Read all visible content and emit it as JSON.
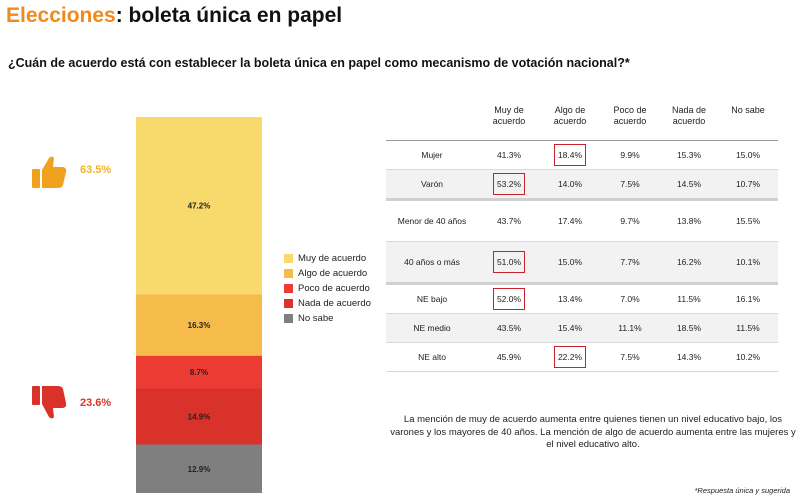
{
  "header": {
    "title_highlight": "Elecciones",
    "title_rest": ": boleta única en papel",
    "question": "¿Cuán de acuerdo está con establecer la boleta única en papel como mecanismo de votación nacional?*"
  },
  "chart_data": {
    "type": "bar",
    "subtype": "stacked-100",
    "segments": [
      {
        "name": "Muy de acuerdo",
        "value": 47.2,
        "label": "47.2%",
        "color": "#F8D96C"
      },
      {
        "name": "Algo de acuerdo",
        "value": 16.3,
        "label": "16.3%",
        "color": "#F5BC4B"
      },
      {
        "name": "Poco de acuerdo",
        "value": 8.7,
        "label": "8.7%",
        "color": "#EC3B33"
      },
      {
        "name": "Nada de acuerdo",
        "value": 14.9,
        "label": "14.9%",
        "color": "#D8322A"
      },
      {
        "name": "No sabe",
        "value": 12.9,
        "label": "12.9%",
        "color": "#7F7F7F"
      }
    ],
    "summary": {
      "agree_total": "63.5%",
      "disagree_total": "23.6%"
    },
    "legend": [
      {
        "label": "Muy de acuerdo",
        "color": "#F8D96C"
      },
      {
        "label": "Algo de acuerdo",
        "color": "#F5BC4B"
      },
      {
        "label": "Poco de acuerdo",
        "color": "#EC3B33"
      },
      {
        "label": "Nada de acuerdo",
        "color": "#D8322A"
      },
      {
        "label": "No sabe",
        "color": "#7F7F7F"
      }
    ],
    "table": {
      "headers": [
        "",
        "Muy de acuerdo",
        "Algo de acuerdo",
        "Poco de acuerdo",
        "Nada de acuerdo",
        "No sabe"
      ],
      "rows": [
        {
          "label": "Mujer",
          "values": [
            "41.3%",
            "18.4%",
            "9.9%",
            "15.3%",
            "15.0%"
          ],
          "highlight": [
            1
          ]
        },
        {
          "label": "Varón",
          "values": [
            "53.2%",
            "14.0%",
            "7.5%",
            "14.5%",
            "10.7%"
          ],
          "highlight": [
            0
          ]
        },
        {
          "label": "Menor de 40 años",
          "values": [
            "43.7%",
            "17.4%",
            "9.7%",
            "13.8%",
            "15.5%"
          ],
          "highlight": []
        },
        {
          "label": "40 años o más",
          "values": [
            "51.0%",
            "15.0%",
            "7.7%",
            "16.2%",
            "10.1%"
          ],
          "highlight": [
            0
          ]
        },
        {
          "label": "NE bajo",
          "values": [
            "52.0%",
            "13.4%",
            "7.0%",
            "11.5%",
            "16.1%"
          ],
          "highlight": [
            0
          ]
        },
        {
          "label": "NE medio",
          "values": [
            "43.5%",
            "15.4%",
            "11.1%",
            "18.5%",
            "11.5%"
          ],
          "highlight": []
        },
        {
          "label": "NE alto",
          "values": [
            "45.9%",
            "22.2%",
            "7.5%",
            "14.3%",
            "10.2%"
          ],
          "highlight": [
            1
          ]
        }
      ]
    }
  },
  "note": "La mención de muy de acuerdo aumenta entre quienes tienen un nivel educativo bajo, los varones y los mayores de 40 años. La mención de algo de acuerdo aumenta entre las mujeres y el nivel educativo alto.",
  "footnote": "*Respuesta única y sugerida",
  "icons": {
    "up": "thumbs-up-icon",
    "down": "thumbs-down-icon"
  }
}
